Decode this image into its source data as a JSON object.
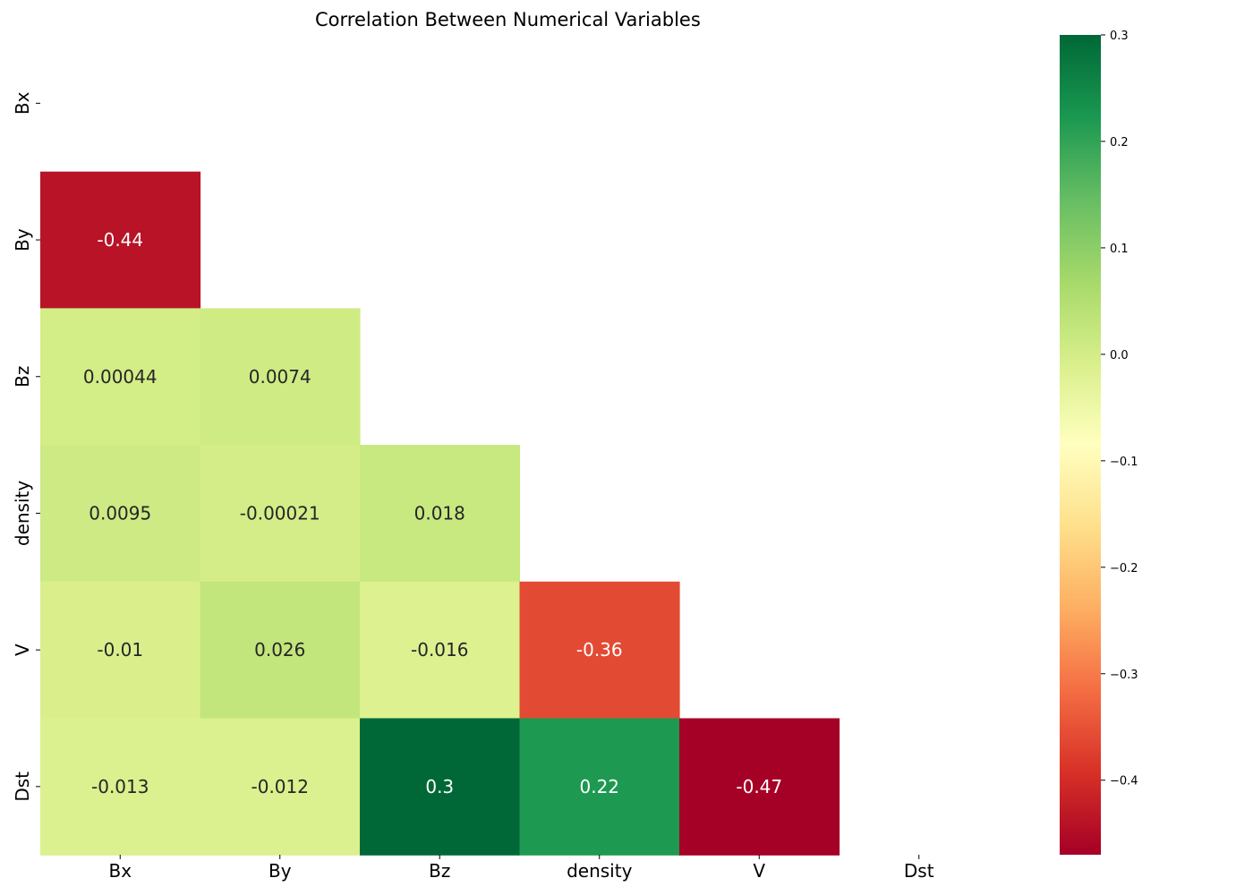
{
  "chart_data": {
    "type": "heatmap",
    "title": "Correlation Between Numerical Variables",
    "variables": [
      "Bx",
      "By",
      "Bz",
      "density",
      "V",
      "Dst"
    ],
    "mask": "upper-triangle-including-diagonal",
    "cells": [
      {
        "row": "By",
        "col": "Bx",
        "value": -0.44
      },
      {
        "row": "Bz",
        "col": "Bx",
        "value": 0.00044
      },
      {
        "row": "Bz",
        "col": "By",
        "value": 0.0074
      },
      {
        "row": "density",
        "col": "Bx",
        "value": 0.0095
      },
      {
        "row": "density",
        "col": "By",
        "value": -0.00021
      },
      {
        "row": "density",
        "col": "Bz",
        "value": 0.018
      },
      {
        "row": "V",
        "col": "Bx",
        "value": -0.01
      },
      {
        "row": "V",
        "col": "By",
        "value": 0.026
      },
      {
        "row": "V",
        "col": "Bz",
        "value": -0.016
      },
      {
        "row": "V",
        "col": "density",
        "value": -0.36
      },
      {
        "row": "Dst",
        "col": "Bx",
        "value": -0.013
      },
      {
        "row": "Dst",
        "col": "By",
        "value": -0.012
      },
      {
        "row": "Dst",
        "col": "Bz",
        "value": 0.3
      },
      {
        "row": "Dst",
        "col": "density",
        "value": 0.22
      },
      {
        "row": "Dst",
        "col": "V",
        "value": -0.47
      }
    ],
    "labels": [
      "-0.44",
      "0.00044",
      "0.0074",
      "0.0095",
      "-0.00021",
      "0.018",
      "-0.01",
      "0.026",
      "-0.016",
      "-0.36",
      "-0.013",
      "-0.012",
      "0.3",
      "0.22",
      "-0.47"
    ],
    "colorbar": {
      "colormap": "RdYlGn",
      "vmin": -0.47,
      "vmax": 0.3,
      "ticks": [
        0.3,
        0.2,
        0.1,
        0.0,
        -0.1,
        -0.2,
        -0.3,
        -0.4
      ],
      "tick_labels": [
        "0.3",
        "0.2",
        "0.1",
        "0.0",
        "−0.1",
        "−0.2",
        "−0.3",
        "−0.4"
      ]
    }
  }
}
